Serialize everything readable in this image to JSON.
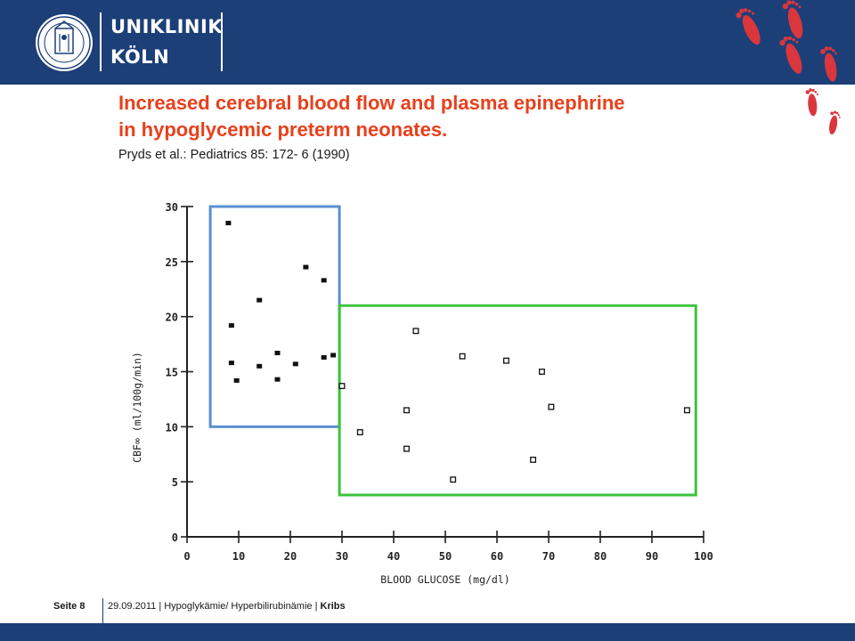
{
  "header": {
    "logo_line1": "UNIKLINIK",
    "logo_line2": "KÖLN",
    "seal_icon": "university-seal-icon",
    "decoration_icon": "baby-footprints-icon",
    "footprint_color": "#d9363e",
    "bg_color": "#1c3f78"
  },
  "slide": {
    "title_line1": "Increased cerebral blood flow and plasma epinephrine",
    "title_line2": "in hypoglycemic preterm neonates.",
    "citation": "Pryds et al.: Pediatrics 85: 172- 6 (1990)",
    "title_color": "#e8401c"
  },
  "chart_data": {
    "type": "scatter",
    "xlabel": "BLOOD GLUCOSE (mg/dl)",
    "ylabel": "CBF∞ (ml/100g/min)",
    "xlim": [
      0,
      100
    ],
    "ylim": [
      0,
      30
    ],
    "xticks": [
      0,
      10,
      20,
      30,
      40,
      50,
      60,
      70,
      80,
      90,
      100
    ],
    "yticks": [
      0,
      5,
      10,
      15,
      20,
      25,
      30
    ],
    "grid": false,
    "series": [
      {
        "marker": "filled-square",
        "points": [
          [
            8,
            28.5
          ],
          [
            8.6,
            19.2
          ],
          [
            8.6,
            15.8
          ],
          [
            9.6,
            14.2
          ],
          [
            14,
            21.5
          ],
          [
            14,
            15.5
          ],
          [
            17.5,
            16.7
          ],
          [
            17.5,
            14.3
          ],
          [
            21,
            15.7
          ],
          [
            23,
            24.5
          ],
          [
            26.5,
            23.3
          ],
          [
            26.5,
            16.3
          ],
          [
            28.3,
            16.5
          ]
        ]
      },
      {
        "marker": "open-square",
        "points": [
          [
            30,
            13.7
          ],
          [
            33.5,
            9.5
          ],
          [
            42.5,
            11.5
          ],
          [
            42.5,
            8
          ],
          [
            44.3,
            18.7
          ],
          [
            51.5,
            5.2
          ],
          [
            53.3,
            16.4
          ],
          [
            61.8,
            16
          ],
          [
            67,
            7
          ],
          [
            68.7,
            15
          ],
          [
            70.5,
            11.8
          ],
          [
            96.8,
            11.5
          ]
        ]
      }
    ],
    "highlight_boxes": [
      {
        "color": "#5b8fd0",
        "x": [
          4.5,
          29.5
        ],
        "y": [
          10,
          30
        ]
      },
      {
        "color": "#3cc43c",
        "x": [
          29.5,
          98.5
        ],
        "y": [
          3.8,
          21
        ]
      }
    ]
  },
  "footer": {
    "page": "Seite 8",
    "date": "29.09.2011",
    "topic": "Hypoglykämie/ Hyperbilirubinämie",
    "author": "Kribs"
  }
}
